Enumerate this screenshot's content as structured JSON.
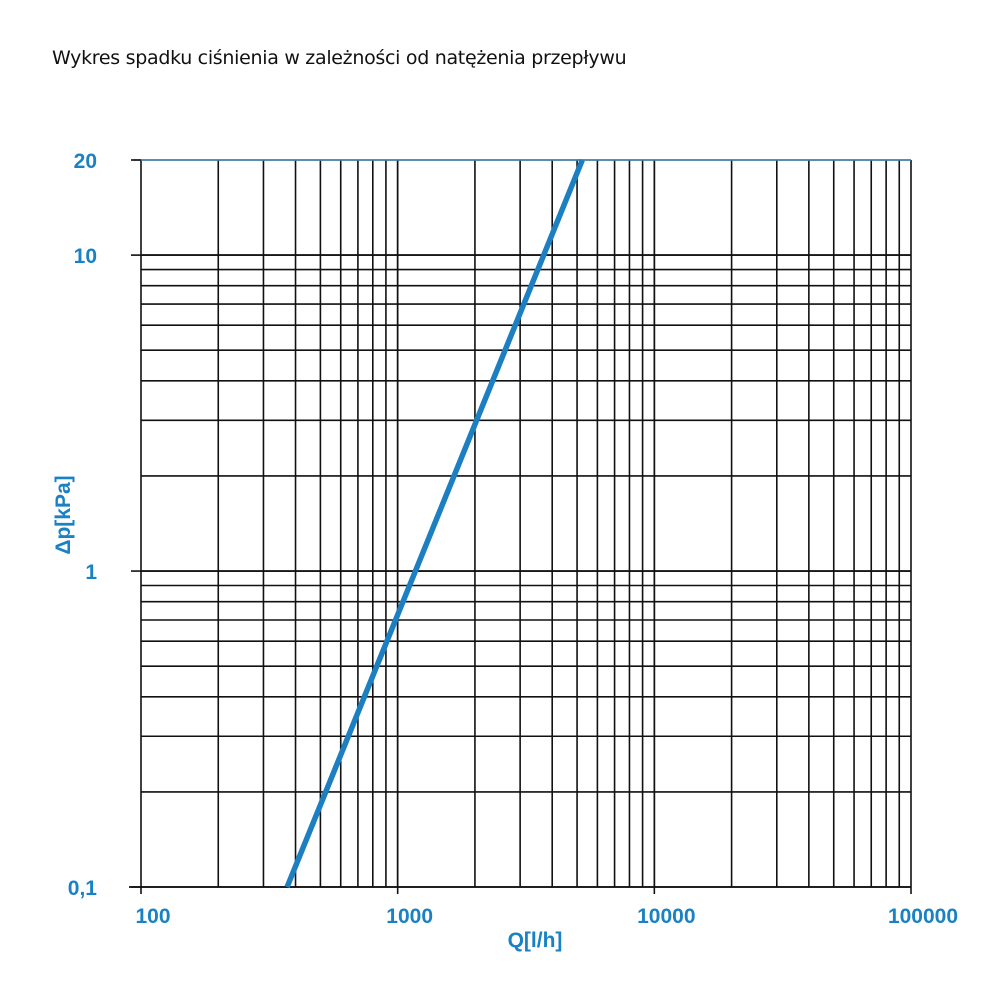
{
  "chart_data": {
    "type": "line",
    "title": "Wykres spadku ciśnienia w zależności od natężenia przepływu",
    "xlabel": "Q[l/h]",
    "ylabel": "Δp[kPa]",
    "xscale": "log",
    "yscale": "log",
    "xlim": [
      100,
      100000
    ],
    "ylim": [
      0.1,
      20
    ],
    "grid": true,
    "x_ticks": [
      {
        "value": 100,
        "label": "100"
      },
      {
        "value": 1000,
        "label": "1000"
      },
      {
        "value": 10000,
        "label": "10000"
      },
      {
        "value": 100000,
        "label": "100000"
      }
    ],
    "y_ticks": [
      {
        "value": 0.1,
        "label": "0,1"
      },
      {
        "value": 1,
        "label": "1"
      },
      {
        "value": 10,
        "label": "10"
      },
      {
        "value": 20,
        "label": "20"
      }
    ],
    "series": [
      {
        "x": [
          371,
          1172,
          3706,
          5241
        ],
        "y": [
          0.1,
          1,
          10,
          20
        ],
        "color": "#1b7fc1"
      }
    ],
    "colors": {
      "line": "#1b7fc1",
      "labels": "#1a82c4",
      "grid": "#111111"
    }
  }
}
